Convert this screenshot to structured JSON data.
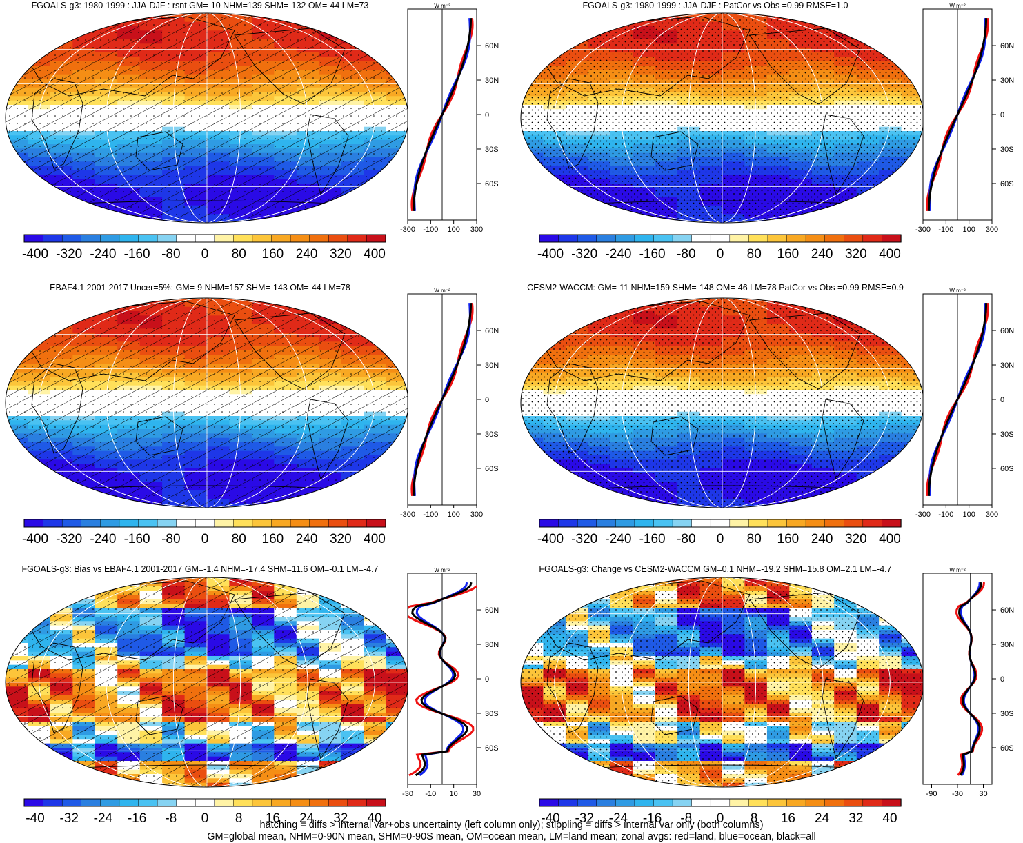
{
  "figure": {
    "footer_lines": [
      "hatching = diffs > internal var+obs uncertainty (left column only); stippling = diffs > internal var only (both columns)",
      "GM=global mean, NHM=0-90N mean, SHM=0-90S mean, OM=ocean mean, LM=land mean; zonal avgs: red=land, blue=ocean, black=all"
    ],
    "zonal_unit": "W m⁻²",
    "latitude_ticks": [
      "60N",
      "30N",
      "0",
      "30S",
      "60S"
    ],
    "colors": {
      "land_line": "#ee1111",
      "ocean_line": "#1122ee",
      "all_line": "#000000",
      "grid": "#ffffff"
    },
    "colorscale": [
      "#2a0ae6",
      "#1e37e8",
      "#1f5ae6",
      "#2a7fe0",
      "#2f9be3",
      "#2fb4ee",
      "#4ac2f2",
      "#86d3f2",
      "#ffffff",
      "#ffffff",
      "#fff3a6",
      "#ffe05a",
      "#fcc53a",
      "#f8a823",
      "#f58e15",
      "#f0700e",
      "#ea4e10",
      "#e02a18",
      "#c8101a"
    ],
    "panels": [
      {
        "title": "FGOALS-g3: 1980-1999 : JJA-DJF : rsnt GM=-10 NHM=139 SHM=-132 OM=-44 LM=73",
        "pattern": "seasonal",
        "hatch": true,
        "stipple": "light",
        "colorbar_ticks": [
          "-400",
          "-320",
          "-240",
          "-160",
          "-80",
          "0",
          "80",
          "160",
          "240",
          "320",
          "400"
        ],
        "zonal_ticks": [
          "-300",
          "-100",
          "100",
          "300"
        ],
        "zonal_range": [
          -300,
          300
        ]
      },
      {
        "title": "FGOALS-g3: 1980-1999 : JJA-DJF : PatCor vs Obs =0.99 RMSE=1.0",
        "pattern": "seasonal",
        "hatch": false,
        "stipple": "dense",
        "colorbar_ticks": [
          "-400",
          "-320",
          "-240",
          "-160",
          "-80",
          "0",
          "80",
          "160",
          "240",
          "320",
          "400"
        ],
        "zonal_ticks": [
          "-300",
          "-100",
          "100",
          "300"
        ],
        "zonal_range": [
          -300,
          300
        ]
      },
      {
        "title": "EBAF4.1 2001-2017 Uncer=5%: GM=-9 NHM=157 SHM=-143 OM=-44 LM=78",
        "pattern": "seasonal",
        "hatch": true,
        "stipple": "light",
        "colorbar_ticks": [
          "-400",
          "-320",
          "-240",
          "-160",
          "-80",
          "0",
          "80",
          "160",
          "240",
          "320",
          "400"
        ],
        "zonal_ticks": [
          "-300",
          "-100",
          "100",
          "300"
        ],
        "zonal_range": [
          -300,
          300
        ]
      },
      {
        "title": "CESM2-WACCM: GM=-11 NHM=159 SHM=-148 OM=-46 LM=78 PatCor vs Obs =0.99 RMSE=0.9",
        "pattern": "seasonal",
        "hatch": false,
        "stipple": "dense",
        "colorbar_ticks": [
          "-400",
          "-320",
          "-240",
          "-160",
          "-80",
          "0",
          "80",
          "160",
          "240",
          "320",
          "400"
        ],
        "zonal_ticks": [
          "-300",
          "-100",
          "100",
          "300"
        ],
        "zonal_range": [
          -300,
          300
        ]
      },
      {
        "title": "FGOALS-g3: Bias vs EBAF4.1 2001-2017 GM=-1.4 NHM=-17.4 SHM=11.6 OM=-0.1 LM=-4.7",
        "pattern": "bias",
        "hatch": true,
        "stipple": "light",
        "colorbar_ticks": [
          "-40",
          "-32",
          "-24",
          "-16",
          "-8",
          "0",
          "8",
          "16",
          "24",
          "32",
          "40"
        ],
        "zonal_ticks": [
          "-30",
          "-10",
          "10",
          "30"
        ],
        "zonal_range": [
          -30,
          30
        ]
      },
      {
        "title": "FGOALS-g3: Change vs CESM2-WACCM GM=0.1 NHM=-19.2 SHM=15.8 OM=2.1 LM=-4.7",
        "pattern": "bias",
        "hatch": false,
        "stipple": "dense",
        "colorbar_ticks": [
          "-40",
          "-32",
          "-24",
          "-16",
          "-8",
          "0",
          "8",
          "16",
          "24",
          "32",
          "40"
        ],
        "zonal_ticks": [
          "-90",
          "-30",
          "30"
        ],
        "zonal_range": [
          -110,
          50
        ]
      }
    ]
  }
}
